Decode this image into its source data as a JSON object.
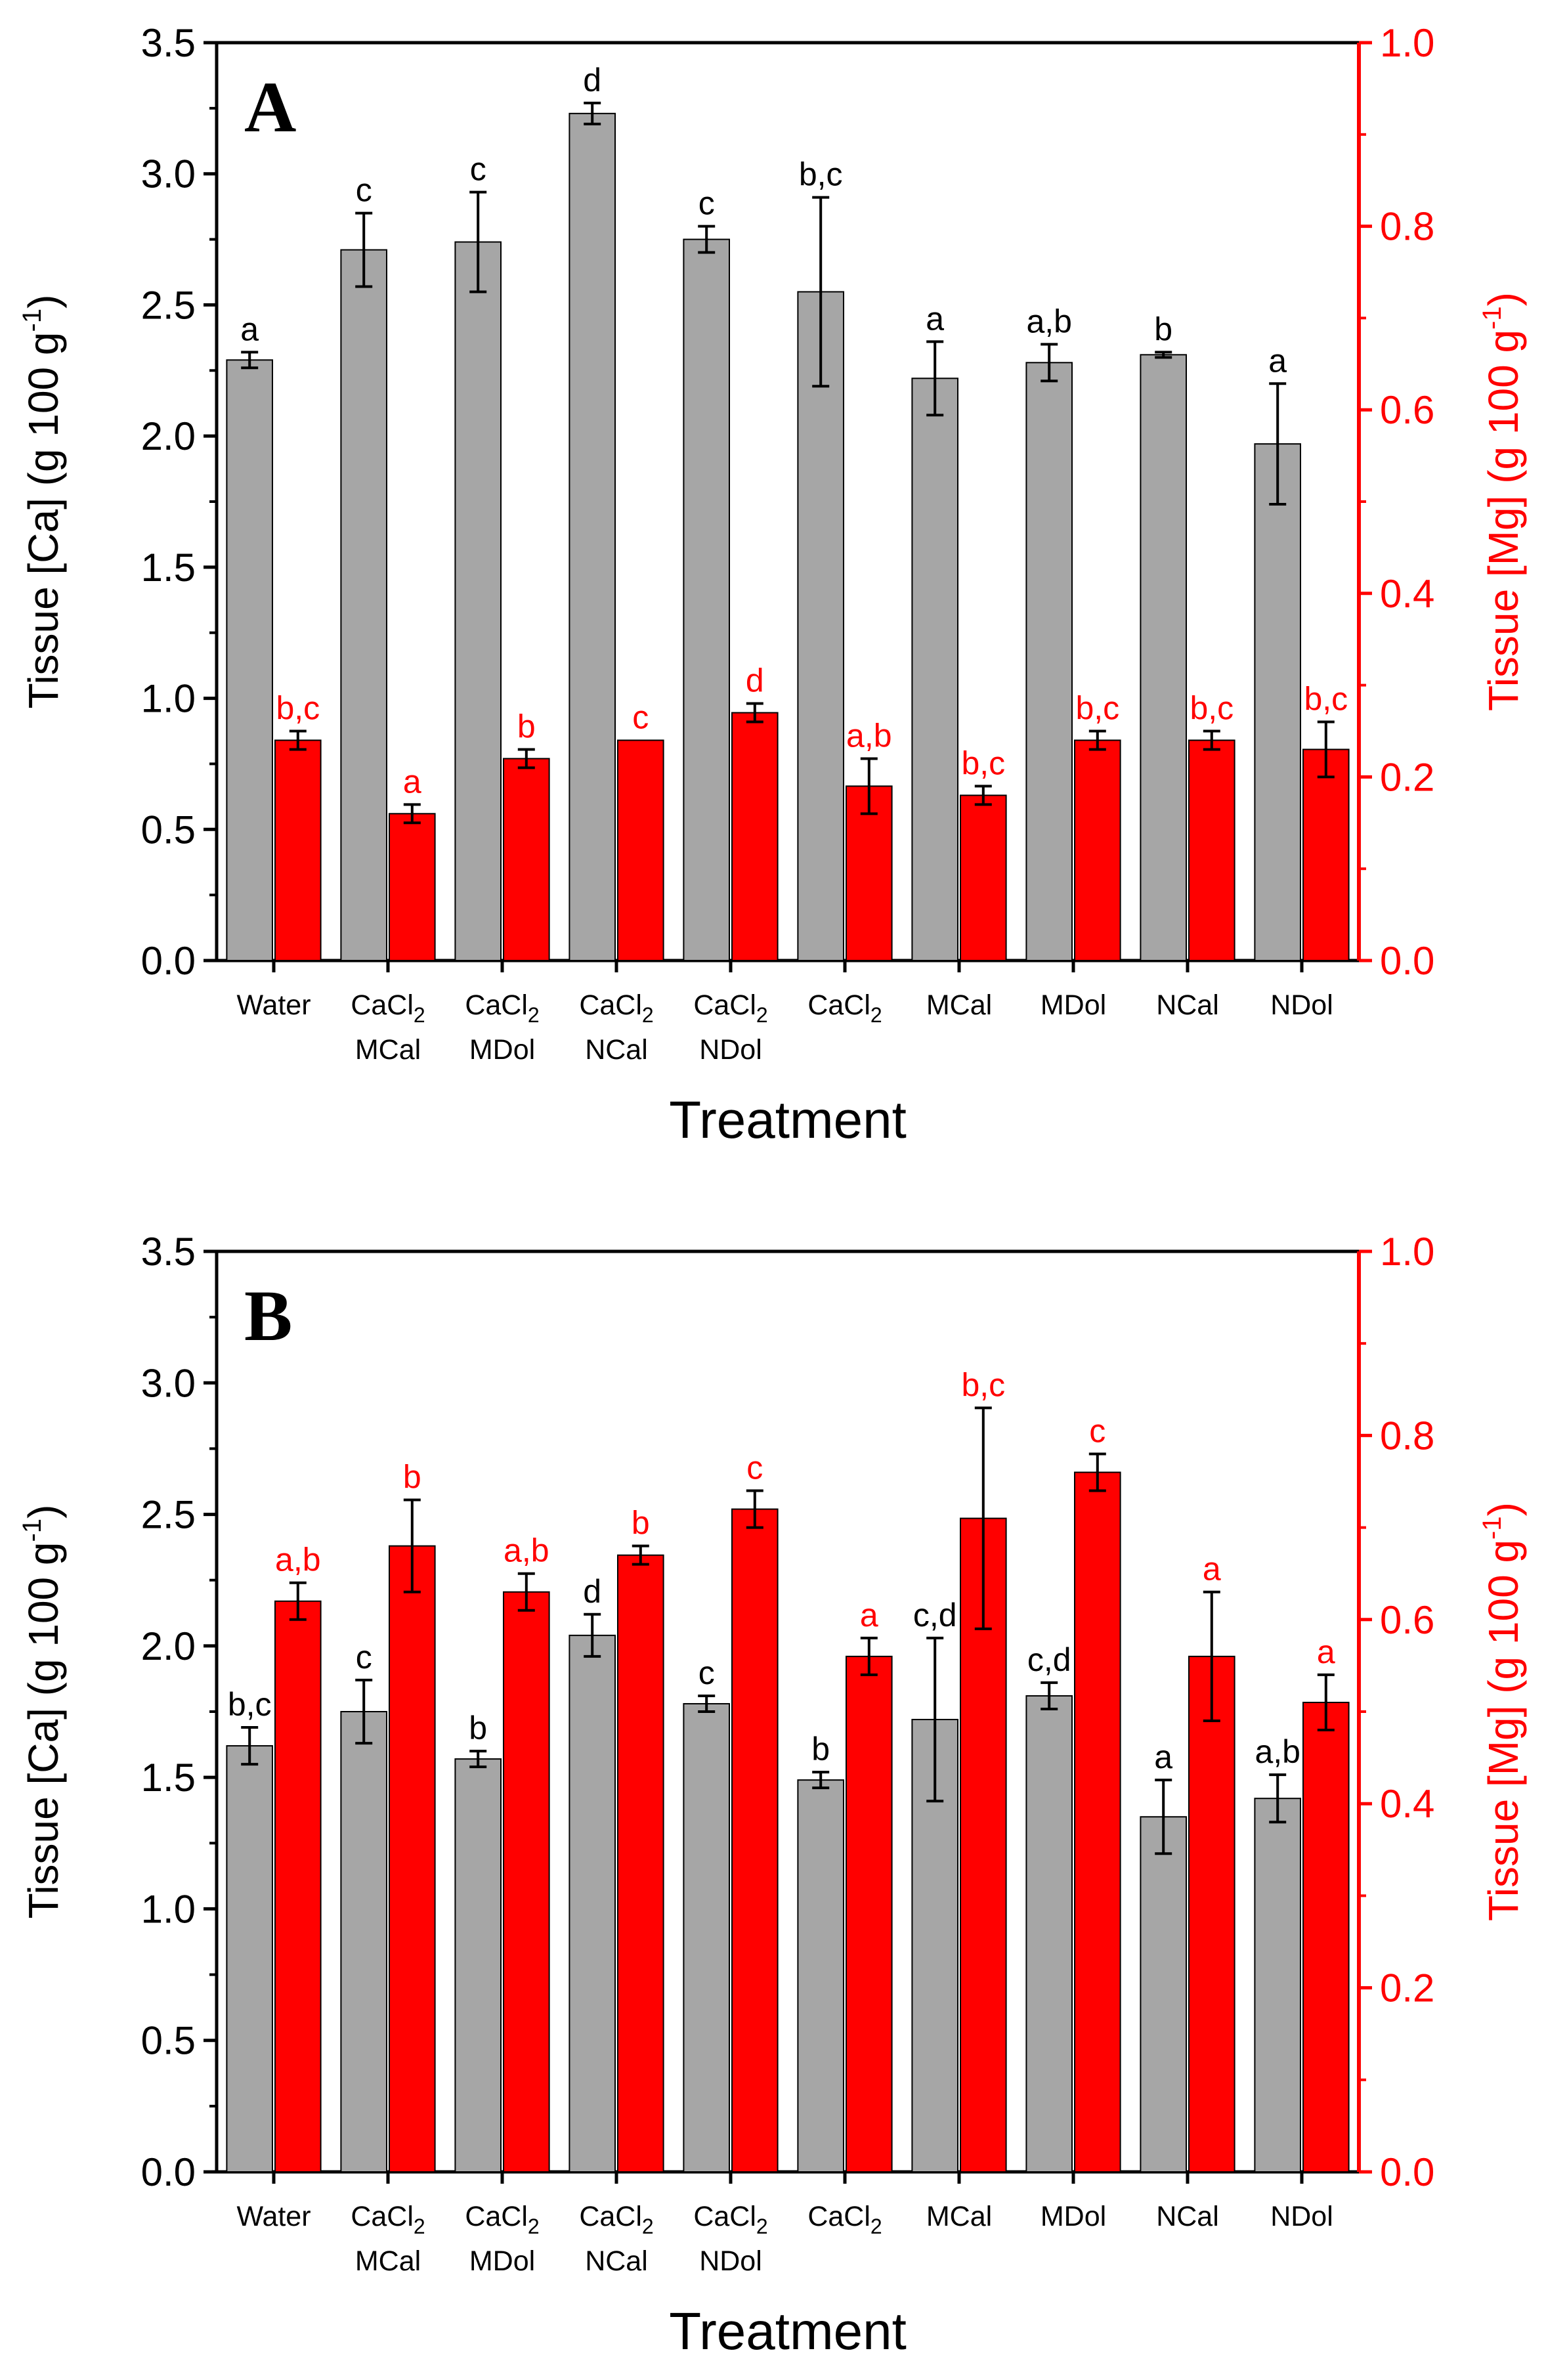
{
  "colors": {
    "ca_bar": "#a6a6a6",
    "mg_bar": "#ff0000",
    "ca_axis": "#000000",
    "mg_axis": "#ff0000",
    "ca_sig": "#000000",
    "mg_sig": "#ff0000"
  },
  "chart_data": [
    {
      "type": "bar",
      "panel": "A",
      "xlabel": "Treatment",
      "ylabel_left": "Tissue [Ca] (g 100 g",
      "ylabel_right": "Tissue [Mg] (g 100 g",
      "ylabel_sup": "-1",
      "ylabel_close": ")",
      "ylim_left": [
        0,
        3.5
      ],
      "ylim_right": [
        0,
        1.0
      ],
      "yticks_left": [
        "0.0",
        "0.5",
        "1.0",
        "1.5",
        "2.0",
        "2.5",
        "3.0",
        "3.5"
      ],
      "yticks_right": [
        "0.0",
        "0.2",
        "0.4",
        "0.6",
        "0.8",
        "1.0"
      ],
      "categories": [
        {
          "line1": "Water",
          "sub": "",
          "line2": ""
        },
        {
          "line1": "CaCl",
          "sub": "2",
          "line2": "MCal"
        },
        {
          "line1": "CaCl",
          "sub": "2",
          "line2": "MDol"
        },
        {
          "line1": "CaCl",
          "sub": "2",
          "line2": "NCal"
        },
        {
          "line1": "CaCl",
          "sub": "2",
          "line2": "NDol"
        },
        {
          "line1": "CaCl",
          "sub": "2",
          "line2": ""
        },
        {
          "line1": "MCal",
          "sub": "",
          "line2": ""
        },
        {
          "line1": "MDol",
          "sub": "",
          "line2": ""
        },
        {
          "line1": "NCal",
          "sub": "",
          "line2": ""
        },
        {
          "line1": "NDol",
          "sub": "",
          "line2": ""
        }
      ],
      "series": [
        {
          "name": "Tissue [Ca]",
          "axis": "left",
          "values": [
            2.29,
            2.71,
            2.74,
            3.23,
            2.75,
            2.55,
            2.22,
            2.28,
            2.31,
            1.97
          ],
          "errors": [
            0.03,
            0.14,
            0.19,
            0.04,
            0.05,
            0.36,
            0.14,
            0.07,
            0.01,
            0.23
          ],
          "letters": [
            "a",
            "c",
            "c",
            "d",
            "c",
            "b,c",
            "a",
            "a,b",
            "b",
            "a"
          ]
        },
        {
          "name": "Tissue [Mg]",
          "axis": "right",
          "values": [
            0.24,
            0.16,
            0.22,
            0.24,
            0.27,
            0.19,
            0.18,
            0.24,
            0.24,
            0.23
          ],
          "errors": [
            0.01,
            0.01,
            0.01,
            0.0,
            0.01,
            0.03,
            0.01,
            0.01,
            0.01,
            0.03
          ],
          "letters": [
            "b,c",
            "a",
            "b",
            "c",
            "d",
            "a,b",
            "b,c",
            "b,c",
            "b,c",
            "b,c"
          ]
        }
      ]
    },
    {
      "type": "bar",
      "panel": "B",
      "xlabel": "Treatment",
      "ylabel_left": "Tissue [Ca] (g 100 g",
      "ylabel_right": "Tissue [Mg] (g 100 g",
      "ylabel_sup": "-1",
      "ylabel_close": ")",
      "ylim_left": [
        0,
        3.5
      ],
      "ylim_right": [
        0,
        1.0
      ],
      "yticks_left": [
        "0.0",
        "0.5",
        "1.0",
        "1.5",
        "2.0",
        "2.5",
        "3.0",
        "3.5"
      ],
      "yticks_right": [
        "0.0",
        "0.2",
        "0.4",
        "0.6",
        "0.8",
        "1.0"
      ],
      "categories": [
        {
          "line1": "Water",
          "sub": "",
          "line2": ""
        },
        {
          "line1": "CaCl",
          "sub": "2",
          "line2": "MCal"
        },
        {
          "line1": "CaCl",
          "sub": "2",
          "line2": "MDol"
        },
        {
          "line1": "CaCl",
          "sub": "2",
          "line2": "NCal"
        },
        {
          "line1": "CaCl",
          "sub": "2",
          "line2": "NDol"
        },
        {
          "line1": "CaCl",
          "sub": "2",
          "line2": ""
        },
        {
          "line1": "MCal",
          "sub": "",
          "line2": ""
        },
        {
          "line1": "MDol",
          "sub": "",
          "line2": ""
        },
        {
          "line1": "NCal",
          "sub": "",
          "line2": ""
        },
        {
          "line1": "NDol",
          "sub": "",
          "line2": ""
        }
      ],
      "series": [
        {
          "name": "Tissue [Ca]",
          "axis": "left",
          "values": [
            1.62,
            1.75,
            1.57,
            2.04,
            1.78,
            1.49,
            1.72,
            1.81,
            1.35,
            1.42
          ],
          "errors": [
            0.07,
            0.12,
            0.03,
            0.08,
            0.03,
            0.03,
            0.31,
            0.05,
            0.14,
            0.09
          ],
          "letters": [
            "b,c",
            "c",
            "b",
            "d",
            "c",
            "b",
            "c,d",
            "c,d",
            "a",
            "a,b"
          ]
        },
        {
          "name": "Tissue [Mg]",
          "axis": "right",
          "values": [
            0.62,
            0.68,
            0.63,
            0.67,
            0.72,
            0.56,
            0.71,
            0.76,
            0.56,
            0.51
          ],
          "errors": [
            0.02,
            0.05,
            0.02,
            0.01,
            0.02,
            0.02,
            0.12,
            0.02,
            0.07,
            0.03
          ],
          "letters": [
            "a,b",
            "b",
            "a,b",
            "b",
            "c",
            "a",
            "b,c",
            "c",
            "a",
            "a"
          ]
        }
      ]
    }
  ]
}
